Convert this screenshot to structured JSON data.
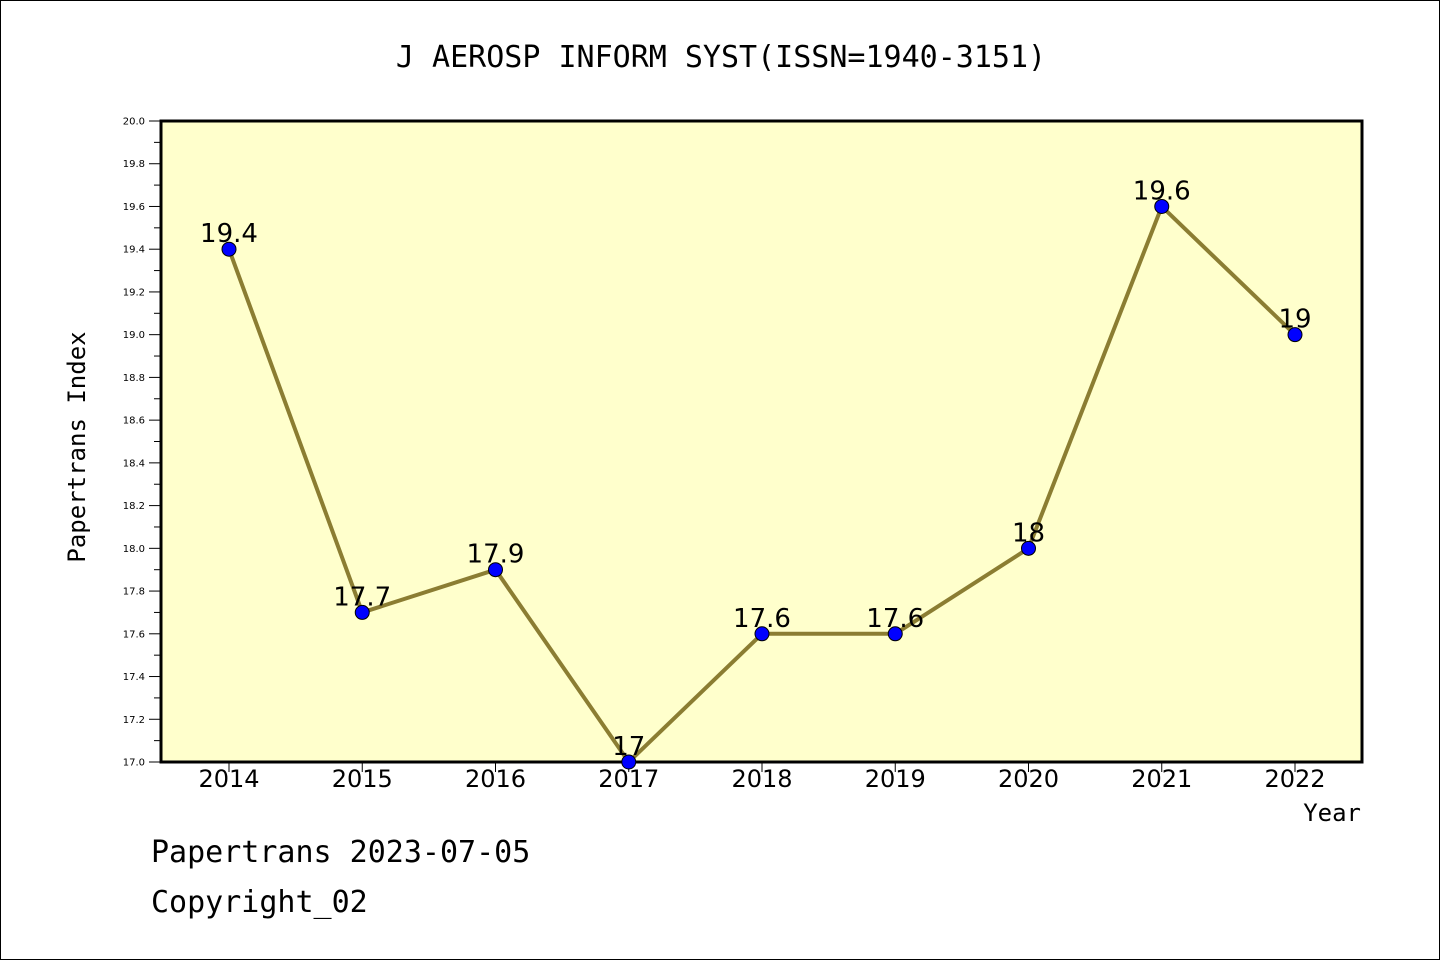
{
  "chart_data": {
    "type": "line",
    "title": "J AEROSP INFORM SYST(ISSN=1940-3151)",
    "xlabel": "Year",
    "ylabel": "Papertrans Index",
    "categories": [
      "2014",
      "2015",
      "2016",
      "2017",
      "2018",
      "2019",
      "2020",
      "2021",
      "2022"
    ],
    "series": [
      {
        "values": [
          19.4,
          17.7,
          17.9,
          17.0,
          17.6,
          17.6,
          18.0,
          19.6,
          19.0
        ],
        "labels": [
          "19.4",
          "17.7",
          "17.9",
          "17",
          "17.6",
          "17.6",
          "18",
          "19.6",
          "19"
        ]
      }
    ],
    "ylim": [
      17.0,
      20.0
    ],
    "yticks": [
      "17.0",
      "17.2",
      "17.4",
      "17.6",
      "17.8",
      "18.0",
      "18.2",
      "18.4",
      "18.6",
      "18.8",
      "19.0",
      "19.2",
      "19.4",
      "19.6",
      "19.8",
      "20.0"
    ],
    "grid": false,
    "colors": {
      "plot_background": "#ffffcc",
      "line": "#8b7d32",
      "marker": "#0000ff",
      "axis": "#000000"
    }
  },
  "footer": {
    "date_line": "Papertrans 2023-07-05",
    "copyright": "Copyright_02"
  }
}
